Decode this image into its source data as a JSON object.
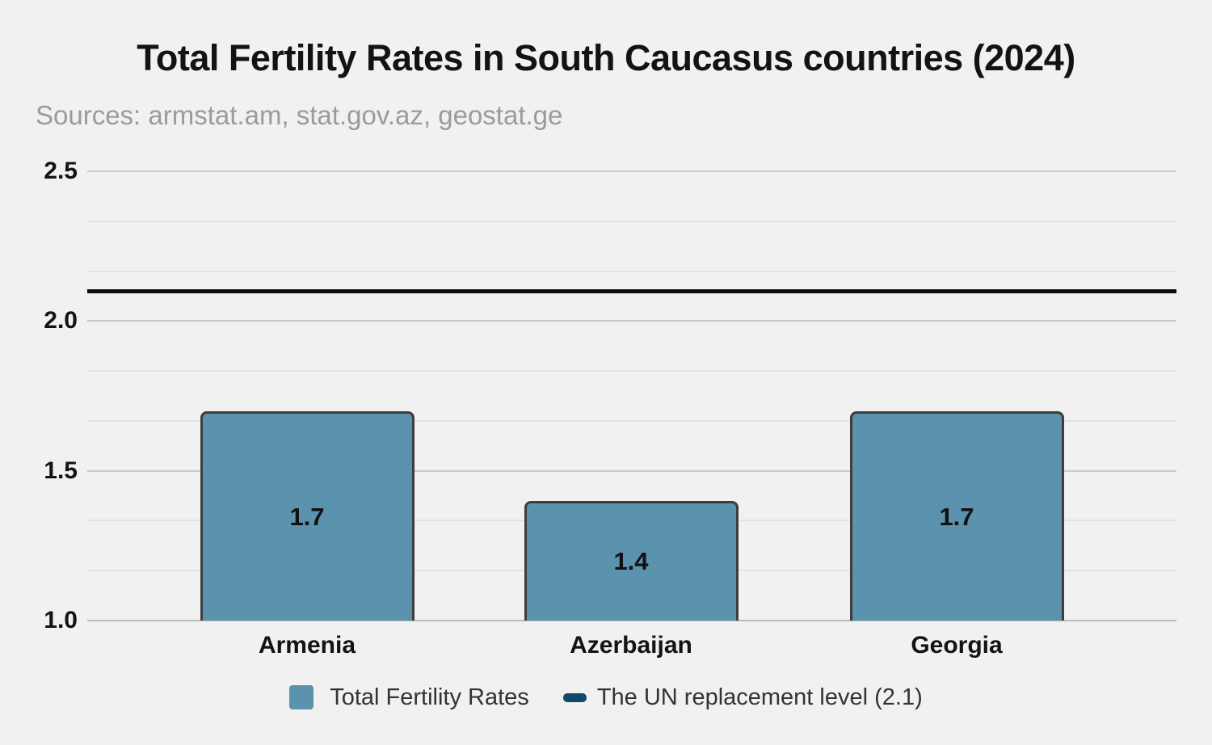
{
  "title": "Total Fertility Rates in South Caucasus countries (2024)",
  "subtitle": "Sources: armstat.am, stat.gov.az, geostat.ge",
  "colors": {
    "background": "#f1f1f2",
    "bar_fill": "#5b92ad",
    "bar_border": "#3d3d3d",
    "replacement_line": "#0e0e0e",
    "legend_line_swatch": "#0d4b66",
    "major_gridline": "#c9c9c9",
    "minor_gridline": "#e3e3e4",
    "title_text": "#131313",
    "subtitle_text": "#9b9b9b"
  },
  "chart_data": {
    "type": "bar",
    "title": "Total Fertility Rates in South Caucasus countries (2024)",
    "subtitle": "Sources: armstat.am, stat.gov.az, geostat.ge",
    "categories": [
      "Armenia",
      "Azerbaijan",
      "Georgia"
    ],
    "series": [
      {
        "name": "Total Fertility Rates",
        "values": [
          1.7,
          1.4,
          1.7
        ]
      }
    ],
    "bar_labels": [
      "1.7",
      "1.4",
      "1.7"
    ],
    "reference_line": {
      "label": "The UN replacement level (2.1)",
      "value": 2.1
    },
    "ylim": [
      1.0,
      2.5
    ],
    "yticks": [
      1.0,
      1.5,
      2.0,
      2.5
    ],
    "gridlines": {
      "major_every": 0.5,
      "minor_per_major": 3
    },
    "grid": true,
    "legend_position": "bottom"
  },
  "legend": {
    "items": [
      {
        "label": "Total Fertility Rates",
        "swatch": "square"
      },
      {
        "label": "The UN replacement level (2.1)",
        "swatch": "line"
      }
    ]
  }
}
